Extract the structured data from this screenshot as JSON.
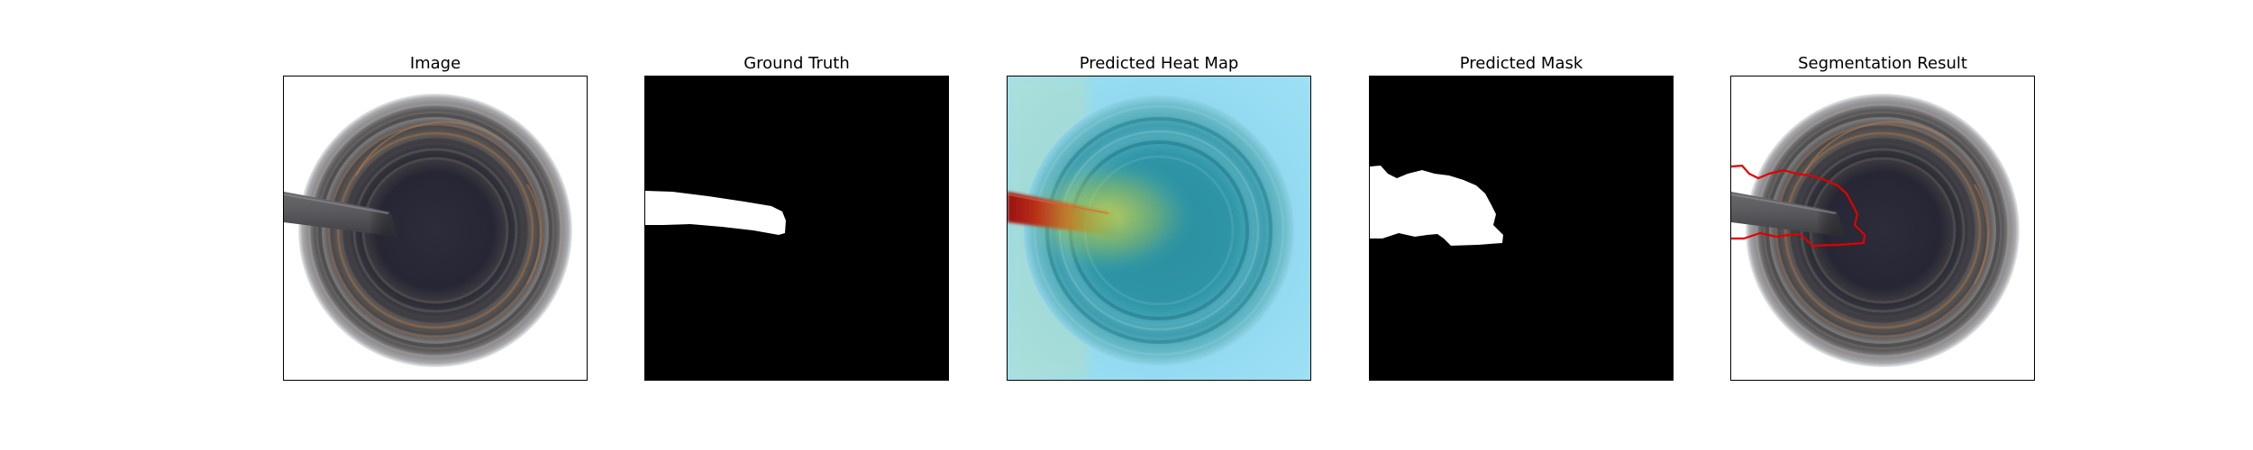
{
  "figure": {
    "panels": [
      {
        "id": "image",
        "title": "Image"
      },
      {
        "id": "ground_truth",
        "title": "Ground Truth"
      },
      {
        "id": "heat_map",
        "title": "Predicted Heat Map"
      },
      {
        "id": "predicted_mask",
        "title": "Predicted Mask"
      },
      {
        "id": "segmentation",
        "title": "Segmentation Result"
      }
    ],
    "colors": {
      "mask_foreground": "#ffffff",
      "mask_background": "#000000",
      "contour": "#e00000",
      "heat_low": "#8fd8f0",
      "heat_high": "#9a1010"
    }
  }
}
